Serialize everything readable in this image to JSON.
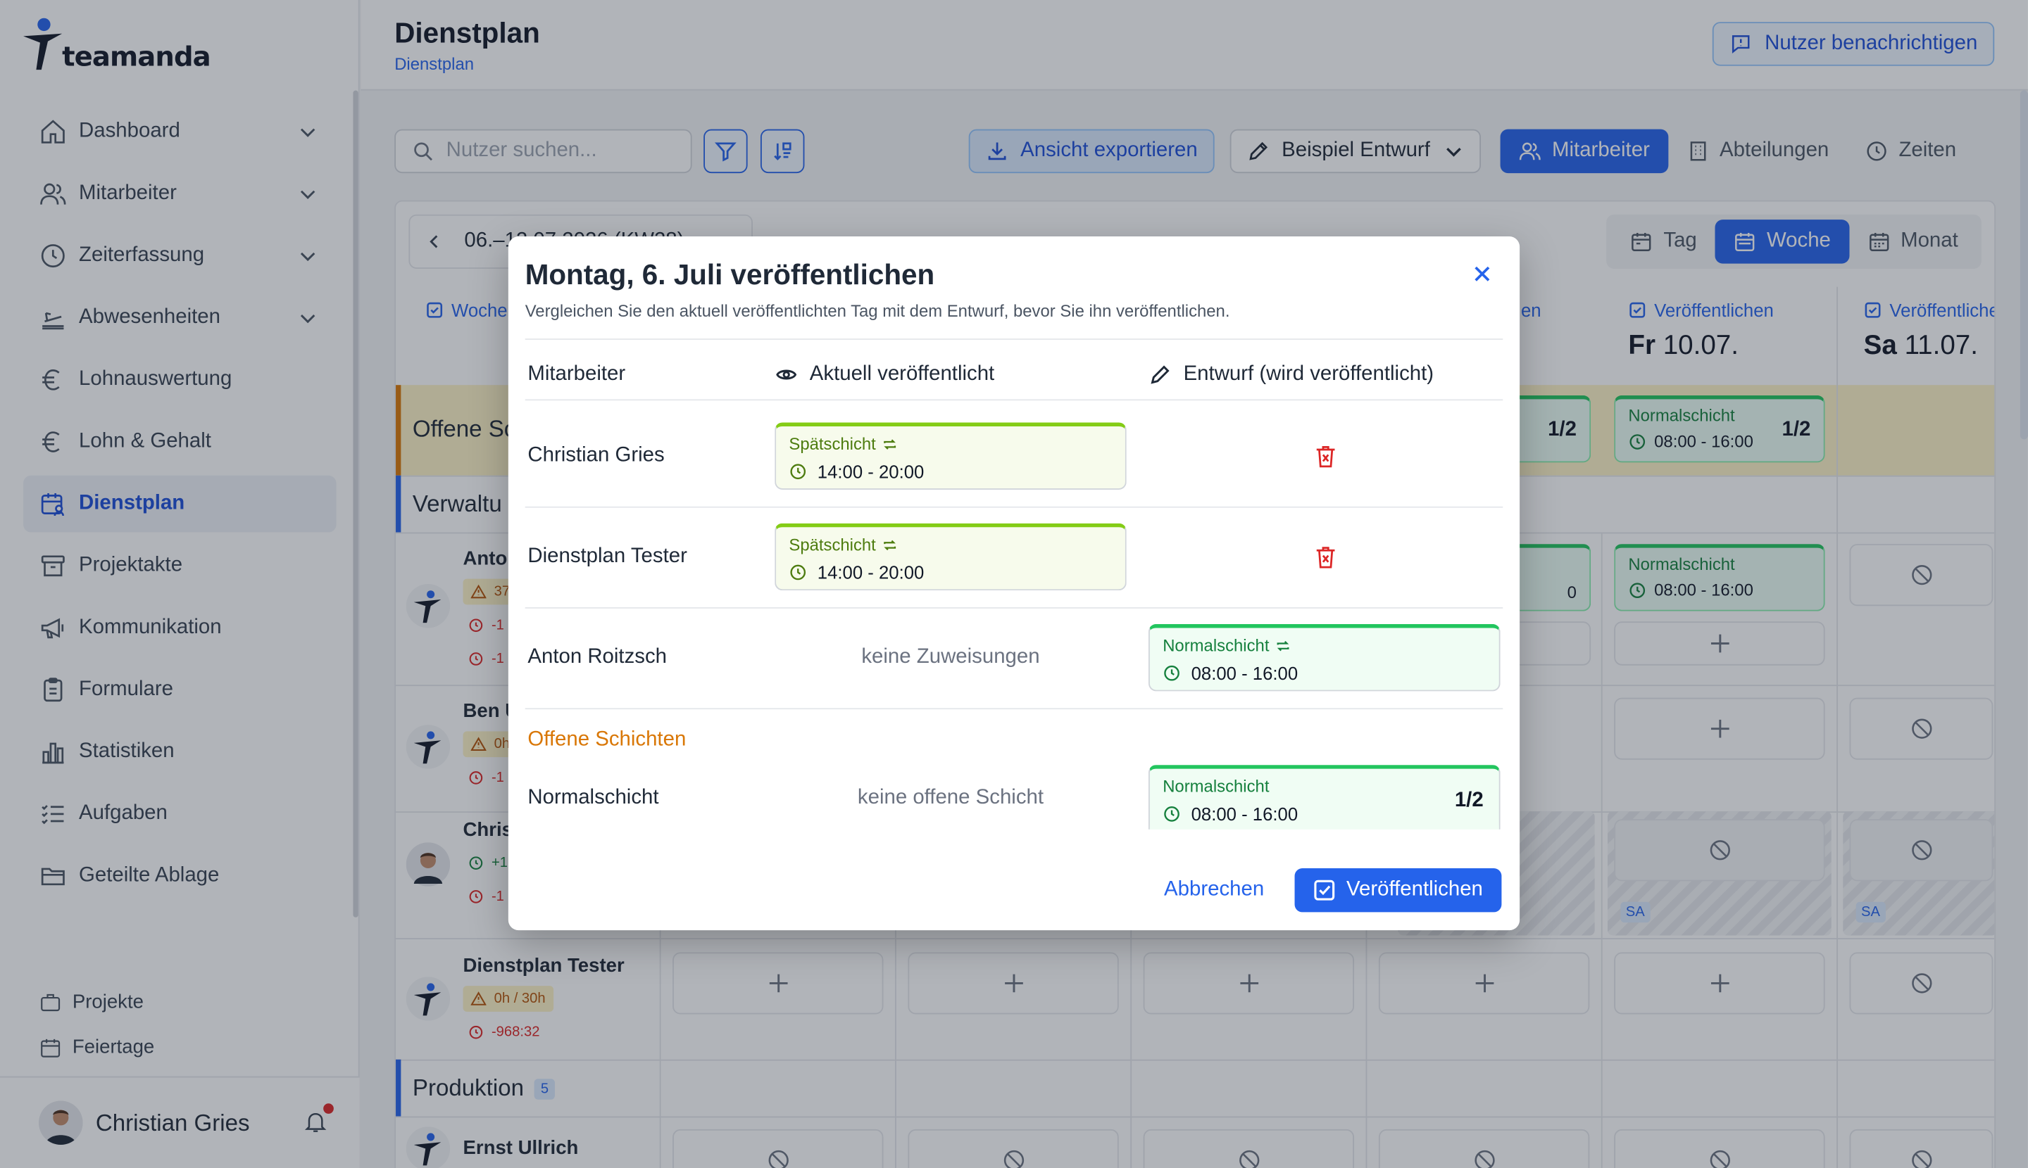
{
  "app": {
    "logo_text": "teamanda",
    "brand_color": "#2563eb"
  },
  "sidebar": {
    "items": [
      {
        "label": "Dashboard",
        "icon": "home-icon",
        "expandable": true
      },
      {
        "label": "Mitarbeiter",
        "icon": "users-icon",
        "expandable": true
      },
      {
        "label": "Zeiterfassung",
        "icon": "clock-icon",
        "expandable": true
      },
      {
        "label": "Abwesenheiten",
        "icon": "beach-icon",
        "expandable": true
      },
      {
        "label": "Lohnauswertung",
        "icon": "euro-icon",
        "expandable": false
      },
      {
        "label": "Lohn & Gehalt",
        "icon": "euro-icon",
        "expandable": false
      },
      {
        "label": "Dienstplan",
        "icon": "calendar-user-icon",
        "expandable": false,
        "active": true
      },
      {
        "label": "Projektakte",
        "icon": "archive-icon",
        "expandable": false
      },
      {
        "label": "Kommunikation",
        "icon": "megaphone-icon",
        "expandable": false
      },
      {
        "label": "Formulare",
        "icon": "clipboard-icon",
        "expandable": false
      },
      {
        "label": "Statistiken",
        "icon": "bar-chart-icon",
        "expandable": false
      },
      {
        "label": "Aufgaben",
        "icon": "list-check-icon",
        "expandable": false
      },
      {
        "label": "Geteilte Ablage",
        "icon": "folder-icon",
        "expandable": false
      }
    ],
    "secondary": [
      {
        "label": "Projekte",
        "icon": "briefcase-icon"
      },
      {
        "label": "Feiertage",
        "icon": "calendar-icon"
      }
    ],
    "user": {
      "name": "Christian Gries"
    }
  },
  "header": {
    "title": "Dienstplan",
    "breadcrumb": "Dienstplan",
    "notify_button": "Nutzer benachrichtigen"
  },
  "toolbar": {
    "search_placeholder": "Nutzer suchen...",
    "export_button": "Ansicht exportieren",
    "draft_button": "Beispiel Entwurf",
    "group_tabs": [
      {
        "label": "Mitarbeiter",
        "active": true
      },
      {
        "label": "Abteilungen",
        "active": false
      },
      {
        "label": "Zeiten",
        "active": false
      }
    ]
  },
  "schedule": {
    "date_range": "06.–12.07.2026 (KW28)",
    "views": [
      {
        "label": "Tag",
        "active": false
      },
      {
        "label": "Woche",
        "active": true
      },
      {
        "label": "Monat",
        "active": false
      }
    ],
    "days": [
      {
        "publish": "Woche",
        "day": "",
        "date": ""
      },
      {
        "publish": "Veröffentlichen",
        "day": "Fr",
        "date": "10.07."
      },
      {
        "publish": "Veröffentlichen",
        "day": "Sa",
        "date": "11.07."
      }
    ],
    "partial_publish": "en",
    "open_shifts_label": "Offene Sc",
    "sections": [
      {
        "label": "Verwaltu",
        "count": ""
      },
      {
        "label": "Produktion",
        "count": "5"
      }
    ],
    "employees": [
      {
        "name": "Anto",
        "hours": "37",
        "overtime_a": "-1",
        "overtime_b": "-1"
      },
      {
        "name": "Ben U",
        "hours": "0h",
        "overtime_a": "-1",
        "overtime_b": ""
      },
      {
        "name": "Chris",
        "hours": "+1",
        "overtime_a": "-1",
        "overtime_b": ""
      },
      {
        "name": "Dienstplan Tester",
        "hours": "0h / 30h",
        "overtime_a": "-968:32",
        "overtime_b": ""
      },
      {
        "name": "Ernst Ullrich",
        "hours": "",
        "overtime_a": "",
        "overtime_b": ""
      }
    ],
    "visible_shifts": [
      {
        "name": "Normalschicht",
        "time": "08:00 - 16:00",
        "count": "1/2"
      },
      {
        "name": "Normalschicht",
        "time": "08:00 - 16:00",
        "count": ""
      }
    ],
    "partial_cells": {
      "count": "1/2",
      "time_fragment": "0"
    },
    "absence_tag": "SA"
  },
  "modal": {
    "title": "Montag, 6. Juli veröffentlichen",
    "subtitle": "Vergleichen Sie den aktuell veröffentlichten Tag mit dem Entwurf, bevor Sie ihn veröffentlichen.",
    "col_employee": "Mitarbeiter",
    "col_current": "Aktuell veröffentlicht",
    "col_draft": "Entwurf (wird veröffentlicht)",
    "rows": [
      {
        "name": "Christian Gries",
        "current": {
          "shift": "Spätschicht",
          "time": "14:00 - 20:00"
        },
        "draft": "delete"
      },
      {
        "name": "Dienstplan Tester",
        "current": {
          "shift": "Spätschicht",
          "time": "14:00 - 20:00"
        },
        "draft": "delete"
      },
      {
        "name": "Anton Roitzsch",
        "current_empty": "keine Zuweisungen",
        "draft": {
          "shift": "Normalschicht",
          "time": "08:00 - 16:00"
        }
      }
    ],
    "open_heading": "Offene Schichten",
    "open_row": {
      "name": "Normalschicht",
      "current_empty": "keine offene Schicht",
      "draft": {
        "shift": "Normalschicht",
        "time": "08:00 - 16:00",
        "count": "1/2"
      }
    },
    "cancel": "Abbrechen",
    "publish": "Veröffentlichen"
  }
}
